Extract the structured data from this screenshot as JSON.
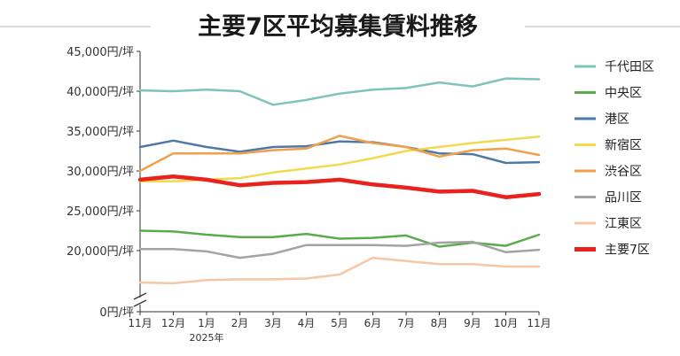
{
  "chart_data": {
    "type": "line",
    "title": "主要7区平均募集賃料推移",
    "xlabel": "",
    "ylabel": "",
    "categories": [
      "11月",
      "12月",
      "1月",
      "2月",
      "3月",
      "4月",
      "5月",
      "6月",
      "7月",
      "8月",
      "9月",
      "10月",
      "11月"
    ],
    "x_sublabel": "2025年",
    "y_ticks": [
      "45,000円/坪",
      "40,000円/坪",
      "35,000円/坪",
      "30,000円/坪",
      "25,000円/坪",
      "20,000円/坪",
      "0円/坪"
    ],
    "y_tick_values": [
      45000,
      40000,
      35000,
      30000,
      25000,
      20000,
      0
    ],
    "ylim": [
      0,
      45000
    ],
    "axis_break": true,
    "series": [
      {
        "name": "千代田区",
        "color": "#7fc3bd",
        "width": 2.5,
        "values": [
          40100,
          40000,
          40200,
          40000,
          38300,
          38900,
          39700,
          40200,
          40400,
          41100,
          40600,
          41600,
          41500
        ]
      },
      {
        "name": "中央区",
        "color": "#5aab4c",
        "width": 2.5,
        "values": [
          22500,
          22400,
          22000,
          21700,
          21700,
          22100,
          21500,
          21600,
          21900,
          20500,
          21000,
          20600,
          22000
        ]
      },
      {
        "name": "港区",
        "color": "#4e79a7",
        "width": 2.5,
        "values": [
          33000,
          33800,
          33000,
          32400,
          33000,
          33100,
          33700,
          33600,
          33000,
          32200,
          32100,
          31000,
          31100
        ]
      },
      {
        "name": "新宿区",
        "color": "#f2d94e",
        "width": 2.5,
        "values": [
          28700,
          28700,
          28900,
          29100,
          29800,
          30300,
          30800,
          31600,
          32500,
          33000,
          33500,
          33900,
          34300
        ]
      },
      {
        "name": "渋谷区",
        "color": "#f0a04b",
        "width": 2.5,
        "values": [
          30000,
          32200,
          32200,
          32200,
          32600,
          32800,
          34400,
          33500,
          33000,
          31800,
          32600,
          32800,
          32000
        ]
      },
      {
        "name": "品川区",
        "color": "#a3a3a3",
        "width": 2.5,
        "values": [
          20200,
          20200,
          19900,
          19100,
          19600,
          20700,
          20700,
          20700,
          20600,
          21000,
          21100,
          19800,
          20100
        ]
      },
      {
        "name": "江東区",
        "color": "#f7c6a3",
        "width": 2.5,
        "values": [
          16000,
          15900,
          16300,
          16400,
          16400,
          16500,
          17000,
          19100,
          18700,
          18300,
          18300,
          18000,
          18000
        ]
      },
      {
        "name": "主要7区",
        "color": "#e8231d",
        "width": 4.5,
        "values": [
          28900,
          29300,
          28900,
          28200,
          28500,
          28600,
          28900,
          28300,
          27900,
          27400,
          27500,
          26700,
          27100
        ]
      }
    ]
  }
}
